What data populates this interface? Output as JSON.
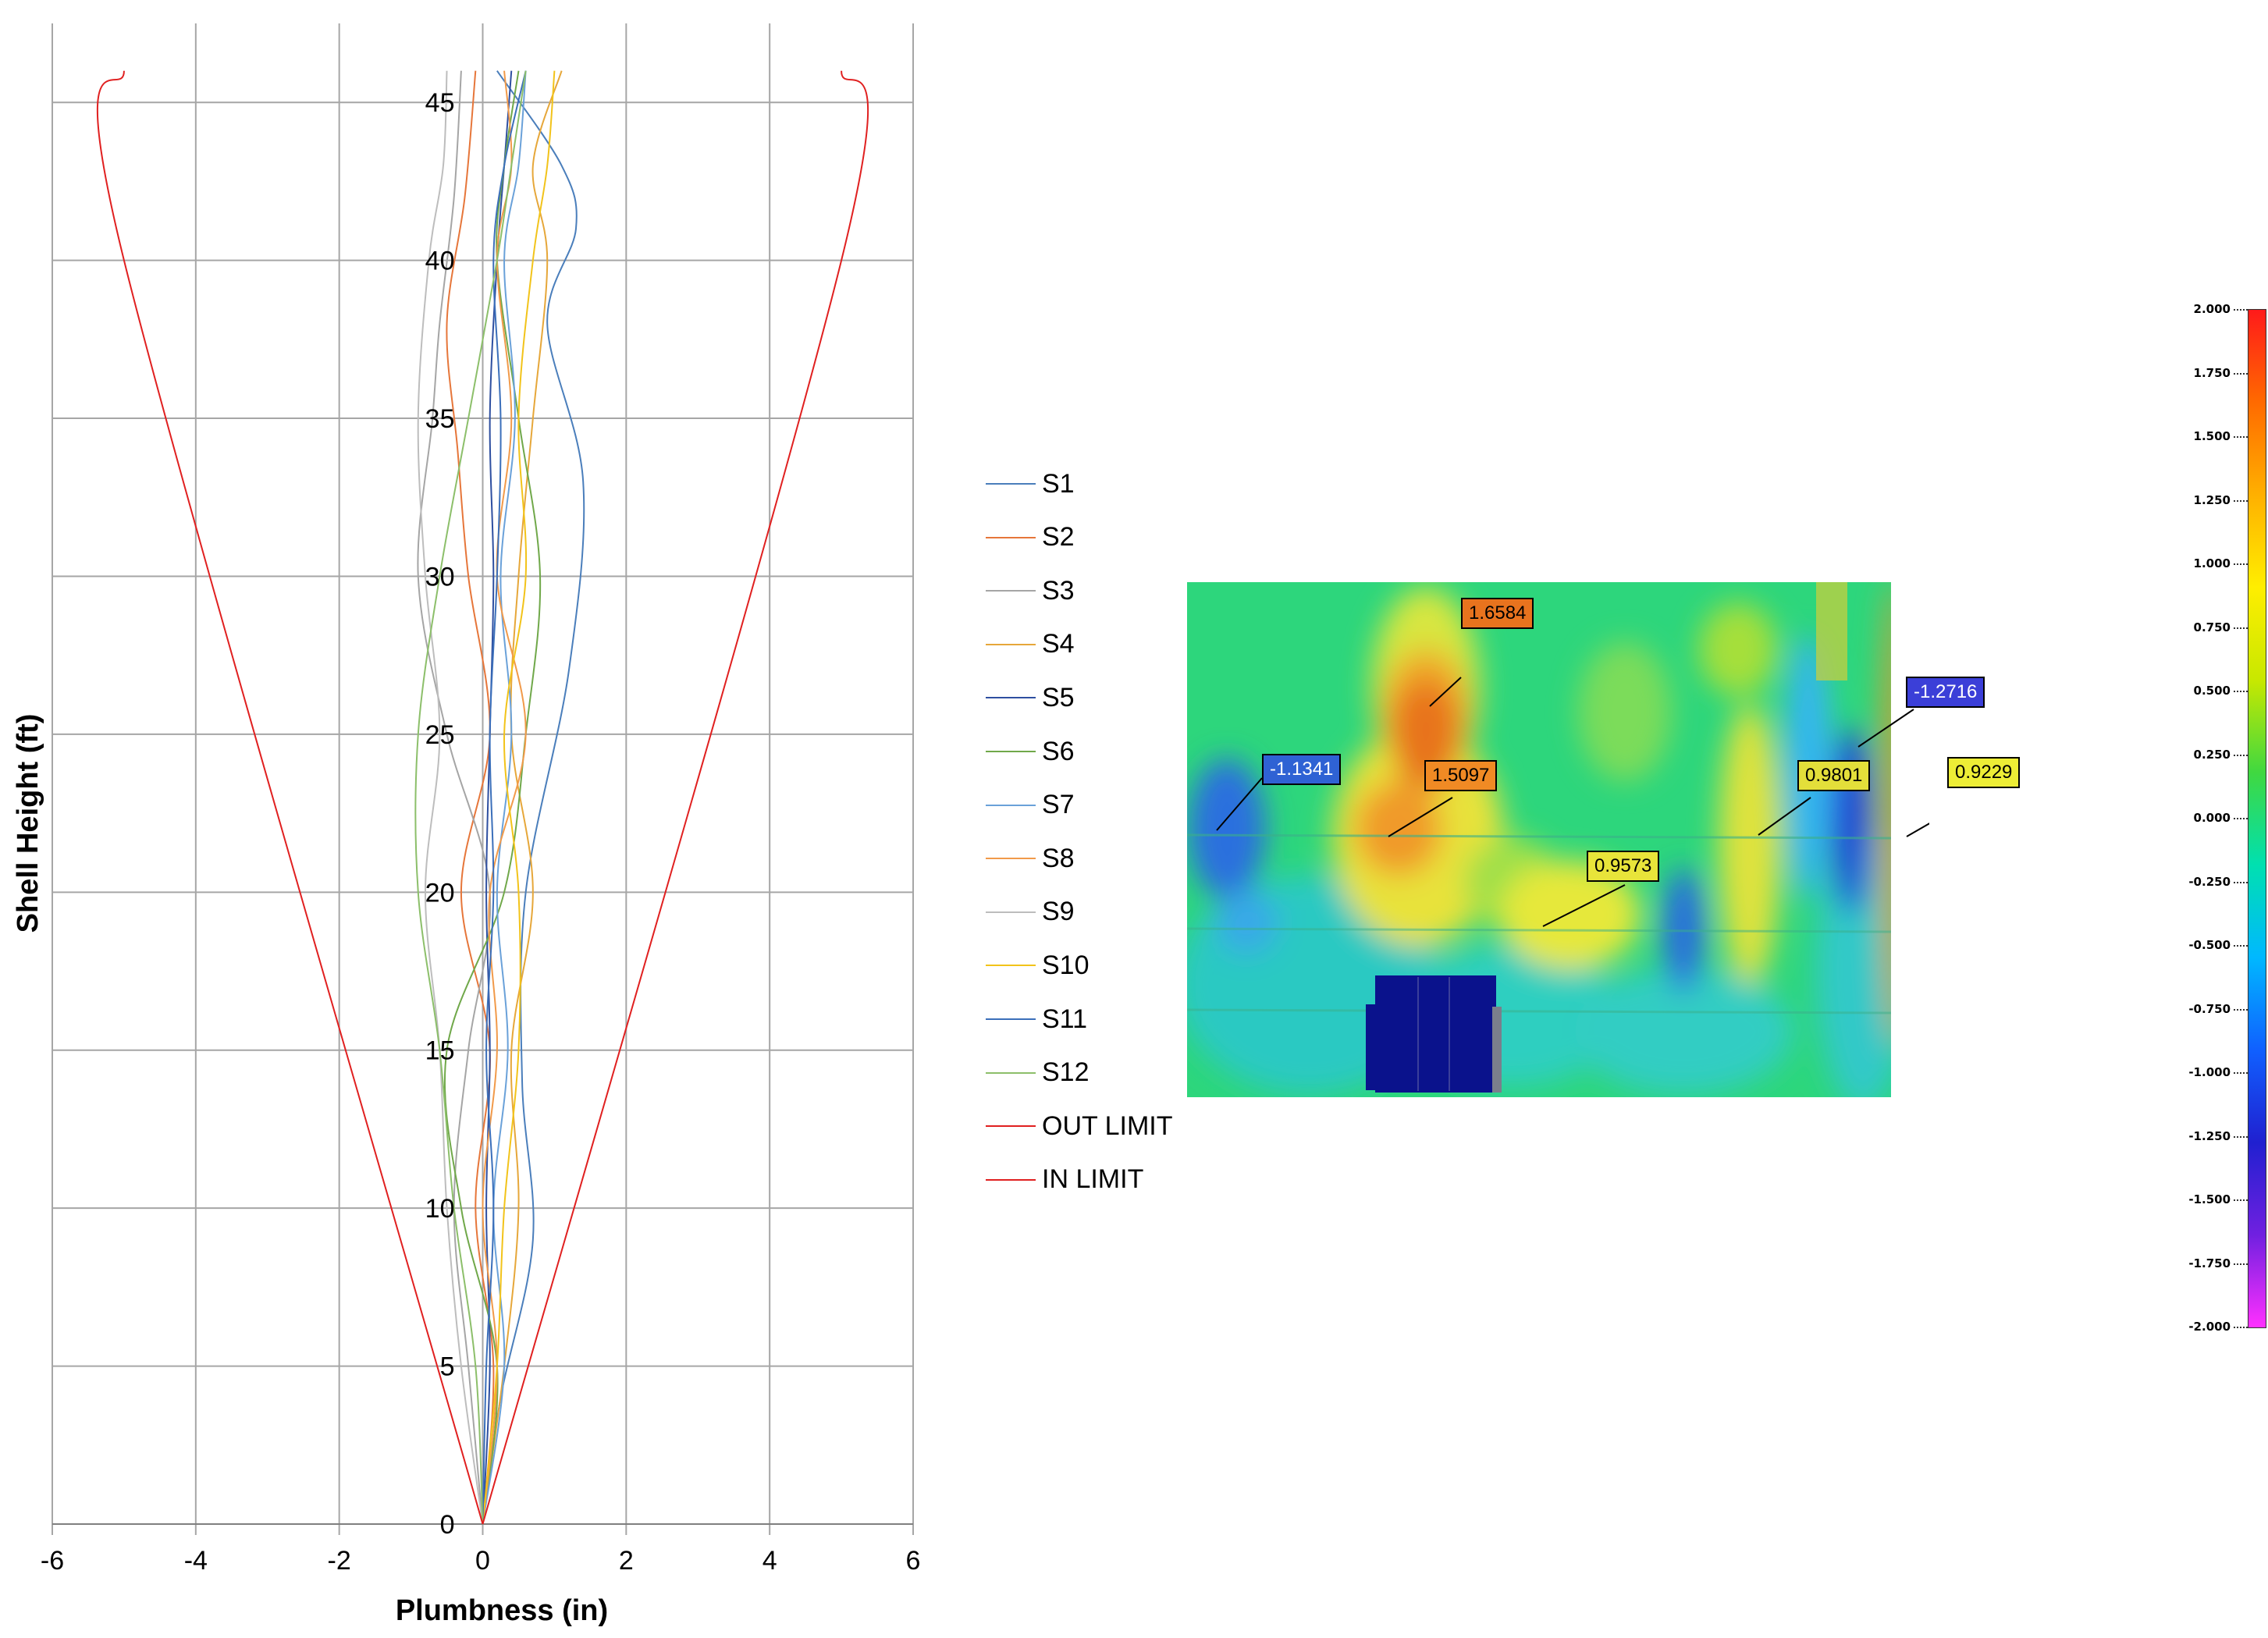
{
  "chart_data": {
    "type": "line",
    "title": "",
    "xlabel": "Plumbness (in)",
    "ylabel": "Shell Height (ft)",
    "xlim": [
      -6,
      6
    ],
    "ylim": [
      0,
      47.5
    ],
    "xticks": [
      -6,
      -4,
      -2,
      0,
      2,
      4,
      6
    ],
    "yticks": [
      0,
      5,
      10,
      15,
      20,
      25,
      30,
      35,
      40,
      45
    ],
    "grid": true,
    "legend_position": "right",
    "series": [
      {
        "name": "S1",
        "color": "#4a7ebb",
        "points": [
          [
            0,
            0
          ],
          [
            0.25,
            4
          ],
          [
            0.7,
            9
          ],
          [
            0.55,
            14
          ],
          [
            0.6,
            20
          ],
          [
            1.2,
            27
          ],
          [
            1.4,
            33
          ],
          [
            0.9,
            38
          ],
          [
            1.3,
            41
          ],
          [
            1.1,
            43
          ],
          [
            0.2,
            46
          ]
        ]
      },
      {
        "name": "S2",
        "color": "#e6763a",
        "points": [
          [
            0,
            0
          ],
          [
            0.15,
            5
          ],
          [
            -0.1,
            10
          ],
          [
            0.1,
            15
          ],
          [
            -0.3,
            20
          ],
          [
            0.1,
            25
          ],
          [
            -0.2,
            30
          ],
          [
            -0.35,
            34
          ],
          [
            -0.5,
            38
          ],
          [
            -0.25,
            42
          ],
          [
            -0.1,
            46
          ]
        ]
      },
      {
        "name": "S3",
        "color": "#a5a5a5",
        "points": [
          [
            0,
            0
          ],
          [
            -0.2,
            5
          ],
          [
            -0.4,
            10
          ],
          [
            -0.2,
            15
          ],
          [
            0.1,
            20
          ],
          [
            -0.5,
            25
          ],
          [
            -0.9,
            30
          ],
          [
            -0.7,
            35
          ],
          [
            -0.6,
            38
          ],
          [
            -0.4,
            42
          ],
          [
            -0.3,
            46
          ]
        ]
      },
      {
        "name": "S4",
        "color": "#e6a73a",
        "points": [
          [
            0,
            0
          ],
          [
            0.3,
            5
          ],
          [
            0.5,
            10
          ],
          [
            0.4,
            15
          ],
          [
            0.7,
            20
          ],
          [
            0.4,
            25
          ],
          [
            0.5,
            30
          ],
          [
            0.7,
            35
          ],
          [
            0.9,
            40
          ],
          [
            0.7,
            43
          ],
          [
            1.1,
            46
          ]
        ]
      },
      {
        "name": "S5",
        "color": "#2e4fa0",
        "points": [
          [
            0,
            0
          ],
          [
            0.1,
            5
          ],
          [
            0.05,
            10
          ],
          [
            0.1,
            15
          ],
          [
            0.05,
            20
          ],
          [
            0.1,
            25
          ],
          [
            0.15,
            30
          ],
          [
            0.1,
            35
          ],
          [
            0.2,
            40
          ],
          [
            0.3,
            43
          ],
          [
            0.4,
            46
          ]
        ]
      },
      {
        "name": "S6",
        "color": "#70a84a",
        "points": [
          [
            0,
            0
          ],
          [
            0.2,
            5
          ],
          [
            -0.3,
            10
          ],
          [
            -0.5,
            15
          ],
          [
            0.3,
            20
          ],
          [
            0.6,
            25
          ],
          [
            0.8,
            30
          ],
          [
            0.5,
            35
          ],
          [
            0.2,
            40
          ],
          [
            0.3,
            43
          ],
          [
            0.5,
            46
          ]
        ]
      },
      {
        "name": "S7",
        "color": "#6aa1d9",
        "points": [
          [
            0,
            0
          ],
          [
            0.3,
            5
          ],
          [
            0.15,
            10
          ],
          [
            0.35,
            15
          ],
          [
            0.2,
            20
          ],
          [
            0.4,
            25
          ],
          [
            0.25,
            30
          ],
          [
            0.45,
            35
          ],
          [
            0.3,
            40
          ],
          [
            0.5,
            43
          ],
          [
            0.6,
            46
          ]
        ]
      },
      {
        "name": "S8",
        "color": "#f19a4a",
        "points": [
          [
            0,
            0
          ],
          [
            0.2,
            5
          ],
          [
            0.0,
            10
          ],
          [
            0.2,
            15
          ],
          [
            0.1,
            20
          ],
          [
            0.6,
            25
          ],
          [
            0.2,
            30
          ],
          [
            0.4,
            35
          ],
          [
            0.2,
            40
          ],
          [
            0.4,
            43
          ],
          [
            0.3,
            46
          ]
        ]
      },
      {
        "name": "S9",
        "color": "#bdbdbd",
        "points": [
          [
            0,
            0
          ],
          [
            -0.3,
            5
          ],
          [
            -0.5,
            10
          ],
          [
            -0.6,
            15
          ],
          [
            -0.8,
            20
          ],
          [
            -0.6,
            25
          ],
          [
            -0.8,
            30
          ],
          [
            -0.9,
            35
          ],
          [
            -0.75,
            40
          ],
          [
            -0.55,
            43
          ],
          [
            -0.5,
            46
          ]
        ]
      },
      {
        "name": "S10",
        "color": "#f2c31a",
        "points": [
          [
            0,
            0
          ],
          [
            0.2,
            5
          ],
          [
            0.3,
            10
          ],
          [
            0.5,
            15
          ],
          [
            0.5,
            20
          ],
          [
            0.3,
            25
          ],
          [
            0.6,
            30
          ],
          [
            0.5,
            35
          ],
          [
            0.7,
            40
          ],
          [
            0.9,
            43
          ],
          [
            1.0,
            46
          ]
        ]
      },
      {
        "name": "S11",
        "color": "#3b6fba",
        "points": [
          [
            0,
            0
          ],
          [
            0.05,
            5
          ],
          [
            0.15,
            10
          ],
          [
            0.05,
            15
          ],
          [
            0.15,
            20
          ],
          [
            0.1,
            25
          ],
          [
            0.2,
            30
          ],
          [
            0.25,
            35
          ],
          [
            0.15,
            40
          ],
          [
            0.3,
            43
          ],
          [
            0.6,
            46
          ]
        ]
      },
      {
        "name": "S12",
        "color": "#8cbf6a",
        "points": [
          [
            0,
            0
          ],
          [
            -0.1,
            5
          ],
          [
            -0.4,
            10
          ],
          [
            -0.6,
            15
          ],
          [
            -0.9,
            20
          ],
          [
            -0.9,
            25
          ],
          [
            -0.6,
            30
          ],
          [
            -0.2,
            35
          ],
          [
            0.2,
            40
          ],
          [
            0.4,
            43
          ],
          [
            0.6,
            46
          ]
        ]
      },
      {
        "name": "OUT LIMIT",
        "color": "#e02020",
        "points": [
          [
            0,
            0
          ],
          [
            5,
            40
          ],
          [
            5.0,
            46
          ]
        ]
      },
      {
        "name": "IN LIMIT",
        "color": "#e02020",
        "points": [
          [
            0,
            0
          ],
          [
            -5,
            40
          ],
          [
            -5.0,
            46
          ]
        ]
      }
    ]
  },
  "scan_callouts": [
    {
      "label": "1.6584",
      "bg": "#e8731e",
      "fg": "#000000"
    },
    {
      "label": "-1.1341",
      "bg": "#2f62d4",
      "fg": "#ffffff"
    },
    {
      "label": "1.5097",
      "bg": "#f08a24",
      "fg": "#000000"
    },
    {
      "label": "0.9573",
      "bg": "#e8e43a",
      "fg": "#000000"
    },
    {
      "label": "0.9801",
      "bg": "#e3df3a",
      "fg": "#000000"
    },
    {
      "label": "-1.2716",
      "bg": "#3b3fd8",
      "fg": "#ffffff"
    },
    {
      "label": "0.9229",
      "bg": "#eded36",
      "fg": "#000000"
    }
  ],
  "colorbar": {
    "ticks": [
      "2.000",
      "1.750",
      "1.500",
      "1.250",
      "1.000",
      "0.750",
      "0.500",
      "0.250",
      "0.000",
      "-0.250",
      "-0.500",
      "-0.750",
      "-1.000",
      "-1.250",
      "-1.500",
      "-1.750",
      "-2.000"
    ],
    "colors": [
      "#ff1a1a",
      "#ff6a00",
      "#ffb000",
      "#ffee00",
      "#c8e800",
      "#40d840",
      "#00e0b0",
      "#00b8ff",
      "#1060ff",
      "#2020d0",
      "#7020e0",
      "#ff30ff"
    ]
  }
}
